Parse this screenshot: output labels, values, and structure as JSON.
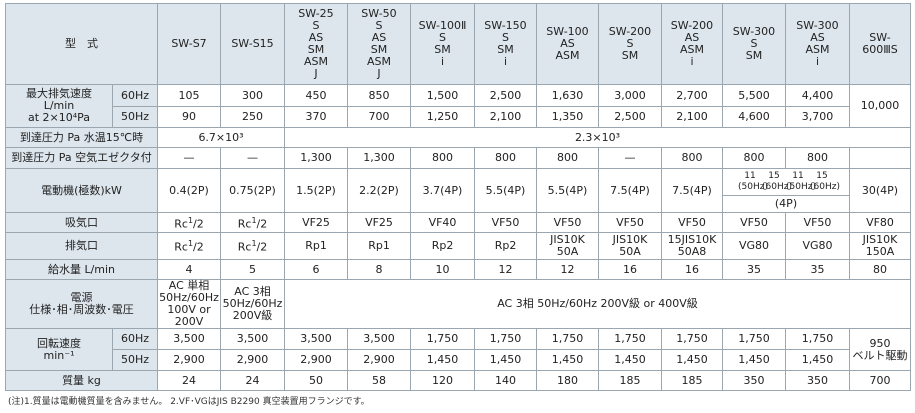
{
  "header": {
    "corner": "型　式",
    "models": [
      "SW-S7",
      "SW-S15",
      "SW-25\nS\nAS\nSM\nASM\nJ",
      "SW-50\nS\nAS\nSM\nASM\nJ",
      "SW-100Ⅱ\nS\nSM\ni",
      "SW-150\nS\nSM\ni",
      "SW-100\nAS\nASM",
      "SW-200\nS\nSM",
      "SW-200\nAS\nASM\ni",
      "SW-300\nS\nSM",
      "SW-300\nAS\nASM\ni",
      "SW-\n600ⅢS"
    ]
  },
  "rows": {
    "pumping_speed": {
      "label": "最大排気速度\nL/min\nat 2×10⁴Pa",
      "hz60": "60Hz",
      "hz50": "50Hz",
      "v60": [
        "105",
        "300",
        "450",
        "850",
        "1,500",
        "2,500",
        "1,630",
        "3,000",
        "2,700",
        "5,500",
        "4,400"
      ],
      "v50": [
        "90",
        "250",
        "370",
        "700",
        "1,250",
        "2,100",
        "1,350",
        "2,500",
        "2,100",
        "4,600",
        "3,700"
      ],
      "last": "10,000"
    },
    "ultimate_water": {
      "label": "到達圧力 Pa 水温15℃時",
      "left": "6.7×10³",
      "right": "2.3×10³"
    },
    "ultimate_ejector": {
      "label": "到達圧力 Pa 空気エゼクタ付",
      "values": [
        "—",
        "—",
        "1,300",
        "1,300",
        "800",
        "800",
        "800",
        "—",
        "800",
        "800",
        "800"
      ]
    },
    "motor": {
      "label": "電動機(極数)kW",
      "values": [
        "0.4(2P)",
        "0.75(2P)",
        "1.5(2P)",
        "2.2(2P)",
        "3.7(4P)",
        "5.5(4P)",
        "5.5(4P)",
        "7.5(4P)",
        "7.5(4P)"
      ],
      "sw300_top": [
        "11",
        "15"
      ],
      "sw300_hz": [
        "(50Hz)",
        "(60Hz)"
      ],
      "sw300_pole": "(4P)",
      "last": "30(4P)"
    },
    "inlet": {
      "label": "吸気口",
      "rc_prefix": "Rc",
      "rc_exp": "1",
      "rc_den": "/2",
      "values": [
        "VF25",
        "VF25",
        "VF40",
        "VF50",
        "VF50",
        "VF50",
        "VF50",
        "VF50",
        "VF50",
        "VF80"
      ]
    },
    "outlet": {
      "label": "排気口",
      "rc_prefix": "Rc",
      "rc_exp": "1",
      "rc_den": "/2",
      "values": [
        "Rp1",
        "Rp1",
        "Rp2",
        "Rp2",
        "JIS10K\n50A",
        "JIS10K\n50A",
        "15JIS10K\n50A8",
        "VG80",
        "VG80",
        "JIS10K\n150A"
      ]
    },
    "water_supply": {
      "label": "給水量 L/min",
      "values": [
        "4",
        "5",
        "6",
        "8",
        "10",
        "12",
        "12",
        "16",
        "16",
        "35",
        "35",
        "80"
      ]
    },
    "power": {
      "label": "電源\n仕様･相･周波数･電圧",
      "s7": "AC 単相\n50Hz/60Hz\n100V or 200V",
      "s15": "AC 3相\n50Hz/60Hz\n200V級",
      "rest": "AC 3相 50Hz/60Hz 200V級 or 400V級"
    },
    "rotation": {
      "label": "回転速度\nmin⁻¹",
      "hz60": "60Hz",
      "hz50": "50Hz",
      "v60": [
        "3,500",
        "3,500",
        "3,500",
        "3,500",
        "1,750",
        "1,750",
        "1,750",
        "1,750",
        "1,750",
        "1,750",
        "1,750"
      ],
      "v50": [
        "2,900",
        "2,900",
        "2,900",
        "2,900",
        "1,450",
        "1,450",
        "1,450",
        "1,450",
        "1,450",
        "1,450",
        "1,450"
      ],
      "last": "950\nベルト駆動"
    },
    "mass": {
      "label": "質量 kg",
      "values": [
        "24",
        "24",
        "50",
        "58",
        "120",
        "140",
        "180",
        "185",
        "185",
        "350",
        "350",
        "700"
      ]
    }
  },
  "footnote": "(注)1.質量は電動機質量を含みません。 2.VF･VGはJIS B2290 真空装置用フランジです。"
}
